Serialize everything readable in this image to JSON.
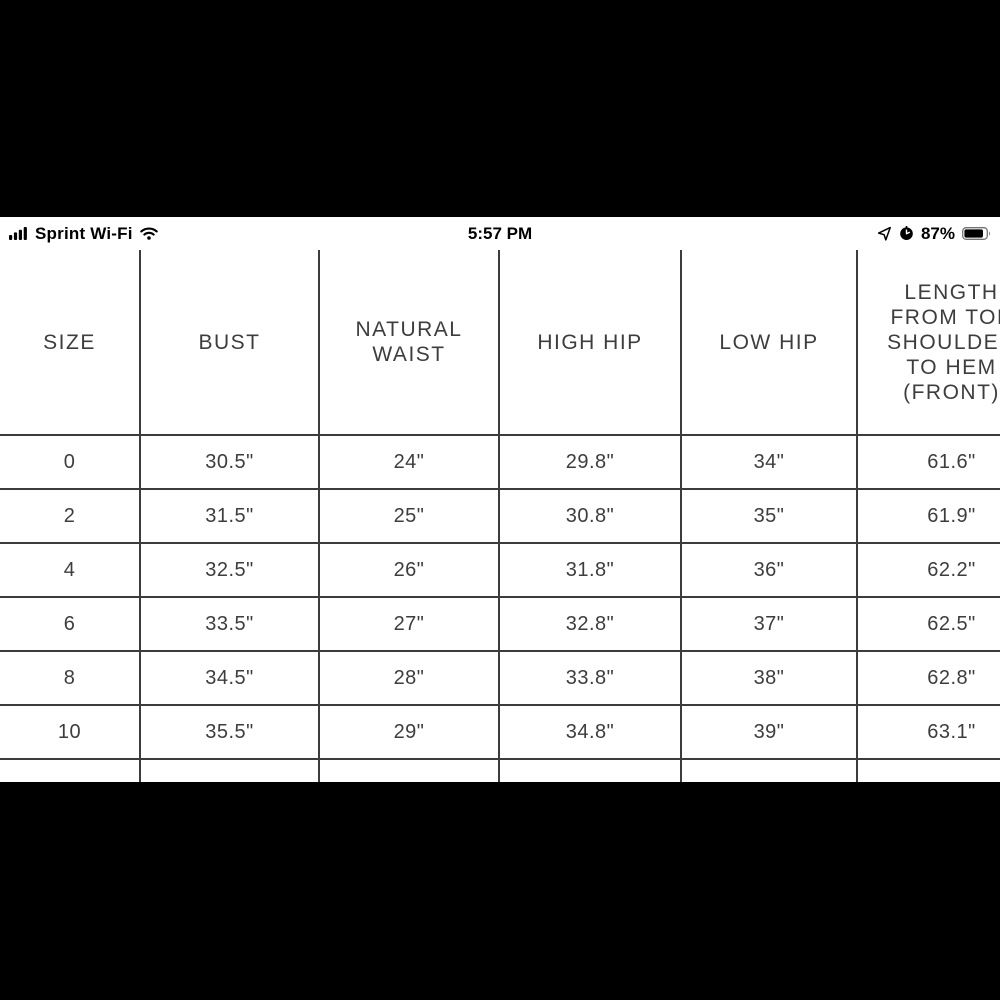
{
  "status_bar": {
    "carrier": "Sprint Wi-Fi",
    "time": "5:57 PM",
    "battery_percent": "87%",
    "battery_level": 0.87,
    "icons": {
      "signal": "cellular-signal-4-bars",
      "wifi": "wifi",
      "location": "location-arrow",
      "alarm": "alarm-clock",
      "battery": "battery"
    },
    "colors": {
      "foreground": "#000000",
      "background": "#ffffff"
    }
  },
  "size_chart": {
    "columns": [
      "SIZE",
      "BUST",
      "NATURAL WAIST",
      "HIGH HIP",
      "LOW HIP",
      "LENGTH FROM TOP SHOULDER TO HEM (FRONT)"
    ],
    "rows": [
      [
        "0",
        "30.5\"",
        "24\"",
        "29.8\"",
        "34\"",
        "61.6\""
      ],
      [
        "2",
        "31.5\"",
        "25\"",
        "30.8\"",
        "35\"",
        "61.9\""
      ],
      [
        "4",
        "32.5\"",
        "26\"",
        "31.8\"",
        "36\"",
        "62.2\""
      ],
      [
        "6",
        "33.5\"",
        "27\"",
        "32.8\"",
        "37\"",
        "62.5\""
      ],
      [
        "8",
        "34.5\"",
        "28\"",
        "33.8\"",
        "38\"",
        "62.8\""
      ],
      [
        "10",
        "35.5\"",
        "29\"",
        "34.8\"",
        "39\"",
        "63.1\""
      ]
    ],
    "border_color": "#3c3c3c",
    "text_color": "#3d3d3d"
  }
}
